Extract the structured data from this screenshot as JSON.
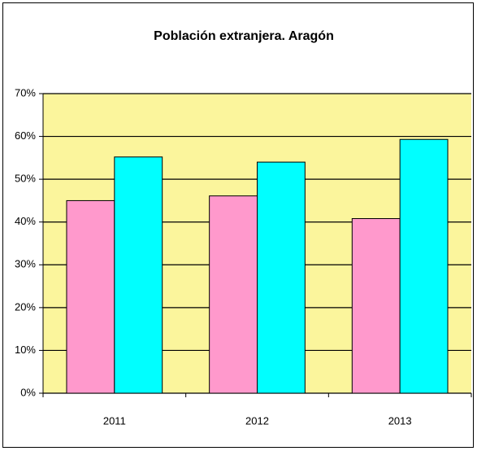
{
  "chart_data": {
    "type": "bar",
    "title": "Población extranjera. Aragón",
    "categories": [
      "2011",
      "2012",
      "2013"
    ],
    "series": [
      {
        "color": "#ff99cc",
        "values": [
          45,
          46.1,
          40.8
        ]
      },
      {
        "color": "#00ffff",
        "values": [
          55.2,
          54,
          59.3
        ]
      }
    ],
    "ylim": [
      0,
      70
    ],
    "yticks": [
      {
        "value": 0,
        "label": "0%"
      },
      {
        "value": 10,
        "label": "10%"
      },
      {
        "value": 20,
        "label": "20%"
      },
      {
        "value": 30,
        "label": "30%"
      },
      {
        "value": 40,
        "label": "40%"
      },
      {
        "value": 50,
        "label": "50%"
      },
      {
        "value": 60,
        "label": "60%"
      },
      {
        "value": 70,
        "label": "70%"
      }
    ],
    "grid": true,
    "plot_background": "#fbf59c"
  }
}
